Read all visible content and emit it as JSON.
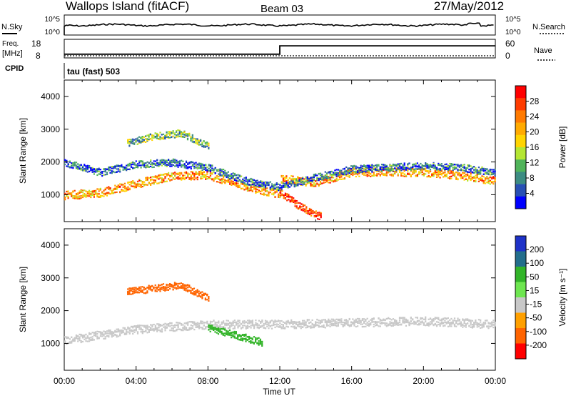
{
  "header": {
    "title": "Wallops Island (fitACF)",
    "beam": "Beam 03",
    "date": "27/May/2012"
  },
  "panels": {
    "nsky": {
      "label": "N.Sky",
      "right_label": "N.Search",
      "left_ticks": [
        "10^5",
        "10^0"
      ],
      "right_ticks": [
        "10^5",
        "10^0"
      ]
    },
    "freq": {
      "label_top": "Freq.",
      "label_unit": "[MHz]",
      "left_ticks": [
        "18",
        "8"
      ],
      "right_label": "Nave",
      "right_ticks": [
        "60",
        "0"
      ]
    },
    "cpid": {
      "label": "CPID",
      "mode": "tau (fast) 503"
    }
  },
  "colorbars": {
    "power": {
      "label": "Power [dB]",
      "ticks": [
        "28",
        "24",
        "20",
        "16",
        "12",
        "8",
        "4"
      ],
      "colors": [
        "#ff0000",
        "#ff3c00",
        "#ff7a00",
        "#ffaa00",
        "#ffd400",
        "#b4e632",
        "#50b45a",
        "#3c8c82",
        "#2850b4",
        "#0000ff"
      ]
    },
    "velocity": {
      "label": "Velocity [m s⁻¹]",
      "ticks": [
        "200",
        "100",
        "50",
        "15",
        "-15",
        "-50",
        "-100",
        "-200"
      ],
      "colors": [
        "#1e32c8",
        "#236e8c",
        "#32b428",
        "#6ee650",
        "#c8c8c8",
        "#ffa000",
        "#ff6400",
        "#ff0000"
      ]
    }
  },
  "axes": {
    "ylabel": "Slant Range [km]",
    "xlabel": "Time UT",
    "yticks": [
      "4000",
      "3000",
      "2000",
      "1000"
    ],
    "xticks": [
      "00:00",
      "04:00",
      "08:00",
      "12:00",
      "16:00",
      "20:00",
      "00:00"
    ]
  },
  "chart_data": {
    "type": "heatmap",
    "title": "Wallops Island (fitACF)",
    "xlabel": "Time UT",
    "ylabel": "Slant Range [km]",
    "x_range_hours": [
      0,
      24
    ],
    "ylim": [
      180,
      4500
    ],
    "grid": false,
    "frequency_mhz": [
      {
        "t": 0,
        "value": 10
      },
      {
        "t": 12,
        "value": 10
      },
      {
        "t": 12,
        "value": 14.5
      },
      {
        "t": 24,
        "value": 14.5
      }
    ],
    "power_bands": [
      {
        "name": "main echo",
        "points": [
          [
            0,
            1000
          ],
          [
            2,
            1080
          ],
          [
            4,
            1350
          ],
          [
            6,
            1600
          ],
          [
            8,
            1620
          ],
          [
            10,
            1300
          ],
          [
            11,
            1150
          ],
          [
            12,
            1050
          ],
          [
            12,
            1500
          ],
          [
            13,
            1450
          ],
          [
            14,
            1400
          ],
          [
            15,
            1550
          ],
          [
            16,
            1700
          ],
          [
            18,
            1720
          ],
          [
            20,
            1700
          ],
          [
            22,
            1600
          ],
          [
            24,
            1450
          ]
        ],
        "db": 22
      },
      {
        "name": "upper band",
        "points": [
          [
            0,
            2000
          ],
          [
            2,
            1700
          ],
          [
            4,
            1950
          ],
          [
            6,
            2000
          ],
          [
            8,
            1850
          ],
          [
            10,
            1450
          ],
          [
            12,
            1250
          ],
          [
            14,
            1550
          ],
          [
            16,
            1800
          ],
          [
            18,
            1850
          ],
          [
            20,
            1900
          ],
          [
            22,
            1850
          ],
          [
            24,
            1700
          ]
        ],
        "db": 8
      },
      {
        "name": "high echo",
        "points": [
          [
            3.5,
            2600
          ],
          [
            5,
            2800
          ],
          [
            6.5,
            2900
          ],
          [
            8,
            2500
          ]
        ],
        "db": 12
      },
      {
        "name": "descending ionospheric",
        "points": [
          [
            12,
            1100
          ],
          [
            13,
            700
          ],
          [
            13.8,
            450
          ],
          [
            14.3,
            350
          ]
        ],
        "db": 28
      }
    ],
    "velocity_bands": [
      {
        "name": "ground scatter",
        "points": [
          [
            0,
            1100
          ],
          [
            4,
            1450
          ],
          [
            8,
            1600
          ],
          [
            12,
            1600
          ],
          [
            16,
            1650
          ],
          [
            20,
            1700
          ],
          [
            24,
            1600
          ]
        ],
        "v": 0
      },
      {
        "name": "positive patch",
        "points": [
          [
            8,
            1500
          ],
          [
            10,
            1200
          ],
          [
            11,
            1050
          ]
        ],
        "v": 40
      },
      {
        "name": "high echo",
        "points": [
          [
            3.5,
            2600
          ],
          [
            5,
            2700
          ],
          [
            6.5,
            2800
          ],
          [
            8,
            2400
          ]
        ],
        "v": -60
      }
    ]
  }
}
